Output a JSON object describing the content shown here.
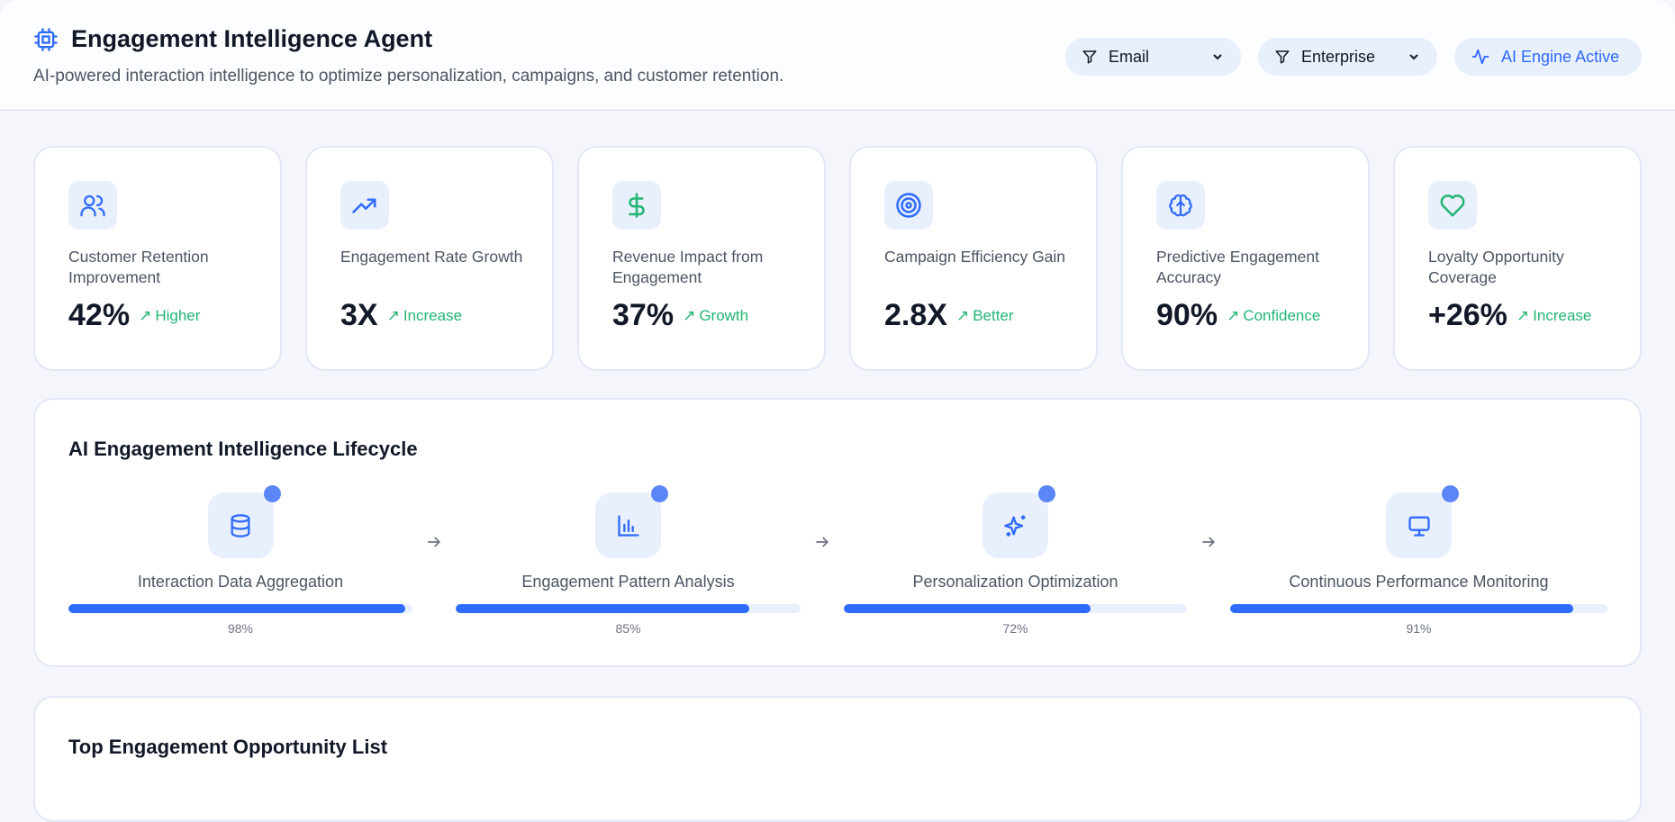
{
  "header": {
    "title": "Engagement Intelligence Agent",
    "subtitle": "AI-powered interaction intelligence to optimize personalization, campaigns, and customer retention.",
    "filters": [
      {
        "label": "Email",
        "icon": "filter-icon"
      },
      {
        "label": "Enterprise",
        "icon": "filter-icon"
      }
    ],
    "status": {
      "label": "AI Engine Active",
      "icon": "activity-icon"
    }
  },
  "kpis": [
    {
      "label": "Customer Retention Improvement",
      "value": "42%",
      "trend": "Higher",
      "icon": "users-icon",
      "color": "#2f6bff"
    },
    {
      "label": "Engagement Rate Growth",
      "value": "3X",
      "trend": "Increase",
      "icon": "trending-up-icon",
      "color": "#2f6bff"
    },
    {
      "label": "Revenue Impact from Engagement",
      "value": "37%",
      "trend": "Growth",
      "icon": "dollar-icon",
      "color": "#22b573"
    },
    {
      "label": "Campaign Efficiency Gain",
      "value": "2.8X",
      "trend": "Better",
      "icon": "target-icon",
      "color": "#2f6bff"
    },
    {
      "label": "Predictive Engagement Accuracy",
      "value": "90%",
      "trend": "Confidence",
      "icon": "brain-icon",
      "color": "#2f6bff"
    },
    {
      "label": "Loyalty Opportunity Coverage",
      "value": "+26%",
      "trend": "Increase",
      "icon": "heart-icon",
      "color": "#22b573"
    }
  ],
  "lifecycle": {
    "title": "AI Engagement Intelligence Lifecycle",
    "steps": [
      {
        "label": "Interaction Data Aggregation",
        "percent": 98,
        "percent_label": "98%",
        "icon": "database-icon"
      },
      {
        "label": "Engagement Pattern Analysis",
        "percent": 85,
        "percent_label": "85%",
        "icon": "bar-chart-icon"
      },
      {
        "label": "Personalization Optimization",
        "percent": 72,
        "percent_label": "72%",
        "icon": "sparkles-icon"
      },
      {
        "label": "Continuous Performance Monitoring",
        "percent": 91,
        "percent_label": "91%",
        "icon": "monitor-icon"
      }
    ]
  },
  "opportunities": {
    "title": "Top Engagement Opportunity List"
  },
  "colors": {
    "accent": "#2f6bff",
    "positive": "#22b573"
  }
}
